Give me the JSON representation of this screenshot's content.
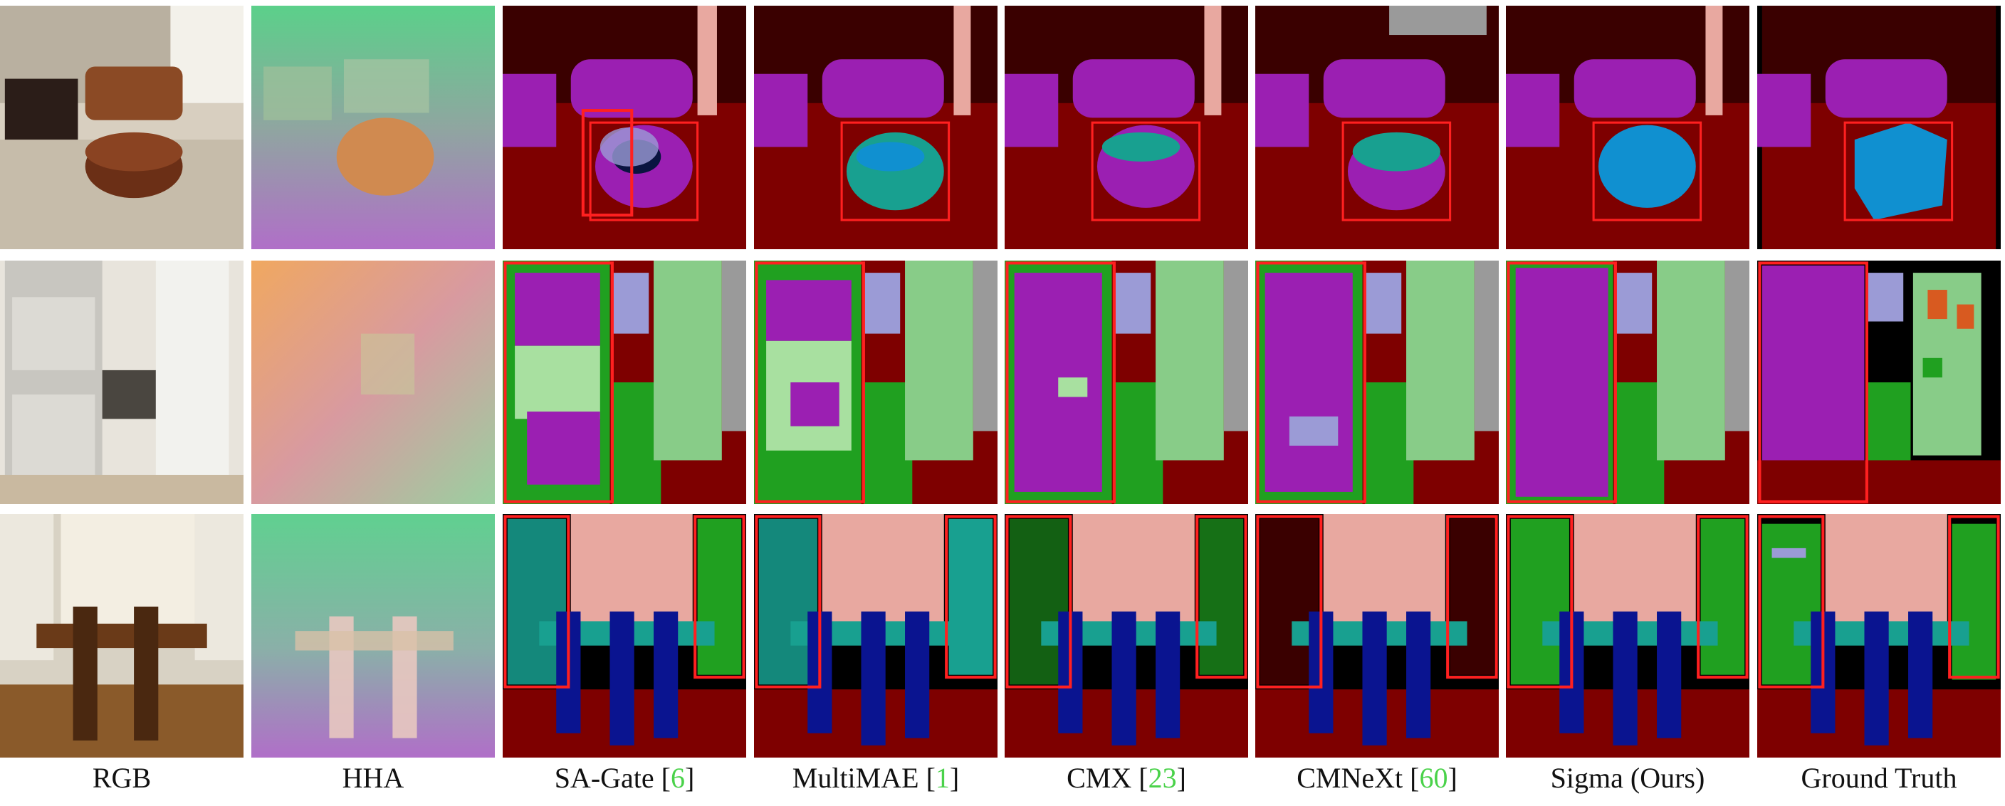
{
  "columns": [
    {
      "label": "RGB",
      "ref": ""
    },
    {
      "label": "HHA",
      "ref": ""
    },
    {
      "label": "SA-Gate",
      "ref": "6"
    },
    {
      "label": "MultiMAE",
      "ref": "1"
    },
    {
      "label": "CMX",
      "ref": "23"
    },
    {
      "label": "CMNeXt",
      "ref": "60"
    },
    {
      "label": "Sigma (Ours)",
      "ref": ""
    },
    {
      "label": "Ground Truth",
      "ref": ""
    }
  ],
  "colors": {
    "floor": "#7e0000",
    "wall": "#3a0000",
    "furniture_purple": "#9b1fb2",
    "table_blue": "#1090d0",
    "cyan": "#18a090",
    "light_green": "#88cc88",
    "green": "#20a020",
    "lavender": "#9b9bd6",
    "pink": "#e8a8a0",
    "navy": "#0a1490",
    "highlight_box": "#ff2020",
    "citation": "#4ad24a"
  }
}
